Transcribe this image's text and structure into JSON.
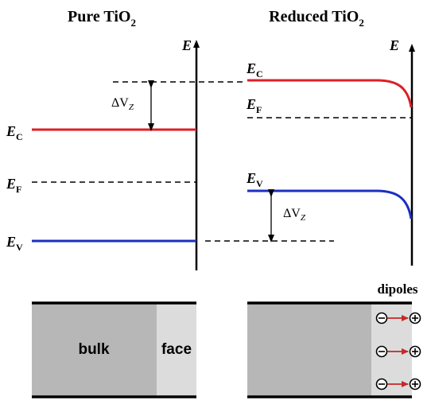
{
  "titles": {
    "left": {
      "main": "Pure TiO",
      "sub": "2"
    },
    "right": {
      "main": "Reduced TiO",
      "sub": "2"
    }
  },
  "axis": {
    "label": "E"
  },
  "levels": {
    "ec": {
      "main": "E",
      "sub": "C"
    },
    "ef": {
      "main": "E",
      "sub": "F"
    },
    "ev": {
      "main": "E",
      "sub": "V"
    }
  },
  "delta": {
    "main": "ΔV",
    "sub": "Z"
  },
  "slab": {
    "bulk": "bulk",
    "face": "face",
    "dipoles": "dipoles"
  },
  "colors": {
    "conduction_band": "#dd1f26",
    "valence_band": "#1d2ec2",
    "bulk_fill": "#b7b7b7",
    "face_fill": "#dcdcdc",
    "dipole_arrow": "#c62828"
  }
}
